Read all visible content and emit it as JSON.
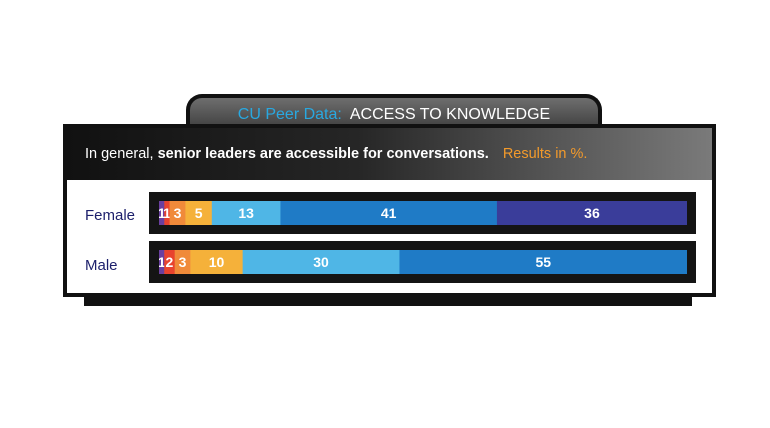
{
  "tab": {
    "label": "CU Peer Data:",
    "title": "ACCESS TO KNOWLEDGE"
  },
  "header": {
    "prefix": "In general, ",
    "statement": "senior leaders are accessible for conversations.",
    "note": "Results in %."
  },
  "chart_data": {
    "type": "bar",
    "orientation": "horizontal-stacked",
    "categories": [
      "Female",
      "Male"
    ],
    "series": [
      {
        "values": [
          1,
          1
        ],
        "color": "#6b3fa0"
      },
      {
        "values": [
          1,
          2
        ],
        "color": "#e8432e"
      },
      {
        "values": [
          3,
          3
        ],
        "color": "#f08a3a"
      },
      {
        "values": [
          5,
          10
        ],
        "color": "#f5b13a"
      },
      {
        "values": [
          13,
          30
        ],
        "color": "#4fb6e6"
      },
      {
        "values": [
          41,
          55
        ],
        "color": "#1f7bc6"
      },
      {
        "values": [
          36,
          0
        ],
        "color": "#3a3d9a"
      }
    ],
    "female_labels": [
      "1",
      "1",
      "3",
      "5",
      "13",
      "41",
      "36"
    ],
    "male_labels": [
      "1",
      "2",
      "3",
      "10",
      "30",
      "55"
    ],
    "unit": "%"
  }
}
